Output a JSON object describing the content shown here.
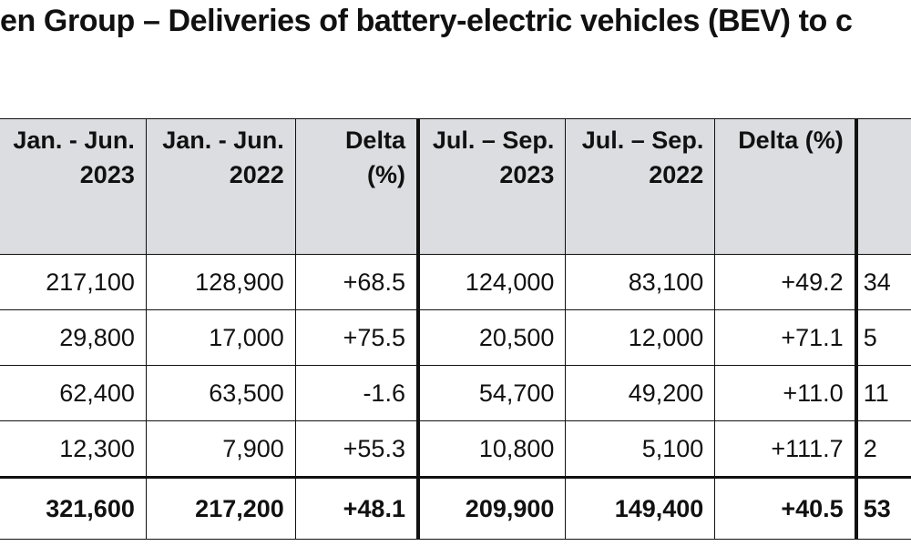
{
  "title": "en Group – Deliveries of battery-electric vehicles (BEV) to c",
  "table": {
    "headers": [
      [
        "Jan. - Jun.",
        "2023"
      ],
      [
        "Jan. - Jun.",
        "2022"
      ],
      [
        "Delta",
        "(%)"
      ],
      [
        "Jul. – Sep.",
        "2023"
      ],
      [
        "Jul. – Sep.",
        "2022"
      ],
      [
        "Delta (%)",
        ""
      ],
      [
        "",
        ""
      ]
    ],
    "rows": [
      [
        "217,100",
        "128,900",
        "+68.5",
        "124,000",
        "83,100",
        "+49.2",
        "34"
      ],
      [
        "29,800",
        "17,000",
        "+75.5",
        "20,500",
        "12,000",
        "+71.1",
        "5"
      ],
      [
        "62,400",
        "63,500",
        "-1.6",
        "54,700",
        "49,200",
        "+11.0",
        "11"
      ],
      [
        "12,300",
        "7,900",
        "+55.3",
        "10,800",
        "5,100",
        "+111.7",
        "2"
      ]
    ],
    "total": [
      "321,600",
      "217,200",
      "+48.1",
      "209,900",
      "149,400",
      "+40.5",
      "53"
    ]
  }
}
